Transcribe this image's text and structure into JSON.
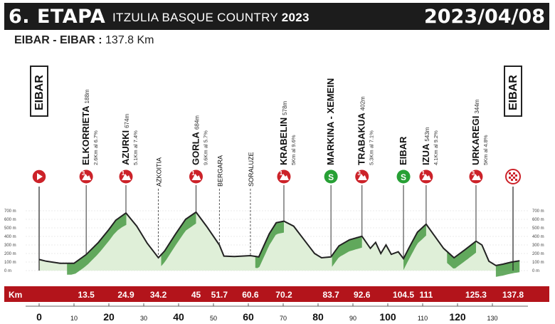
{
  "header": {
    "stage": "6. ETAPA",
    "race_name": "ITZULIA BASQUE COUNTRY",
    "race_year": "2023",
    "date": "2023/04/08"
  },
  "route": {
    "cities": "EIBAR - EIBAR :",
    "distance": "137.8 Km"
  },
  "start_label": "EIBAR",
  "finish_label": "EIBAR",
  "colors": {
    "header_bg": "#1c1c1c",
    "km_bar": "#b3141b",
    "badge_red": "#cc2229",
    "sprint_green": "#27a035",
    "profile_fill": "#dfefd8",
    "climb_green": "#4b9b47"
  },
  "km_axis_label": "Km",
  "points": [
    {
      "name": "ELKORRIETA",
      "alt": "188m",
      "detail": "2.6Km al 6.7%",
      "km": 13.5,
      "km_label": "13.5",
      "marker": "climb",
      "cat": "3"
    },
    {
      "name": "AZURKI",
      "alt": "674m",
      "detail": "5.1Km al 7.4%",
      "km": 24.9,
      "km_label": "24.9",
      "marker": "climb",
      "cat": "1"
    },
    {
      "name": "AZKOITIA",
      "alt": "",
      "detail": "",
      "km": 34.2,
      "km_label": "34.2",
      "marker": "town",
      "cat": ""
    },
    {
      "name": "GORLA",
      "alt": "684m",
      "detail": "9.6Km al 5.7%",
      "km": 45,
      "km_label": "45",
      "marker": "climb",
      "cat": "1"
    },
    {
      "name": "BERGARA",
      "alt": "",
      "detail": "",
      "km": 51.7,
      "km_label": "51.7",
      "marker": "town",
      "cat": ""
    },
    {
      "name": "SORALUZE",
      "alt": "",
      "detail": "",
      "km": 60.6,
      "km_label": "60.6",
      "marker": "town",
      "cat": ""
    },
    {
      "name": "KRABELIN",
      "alt": "578m",
      "detail": "5Km al 9.6%",
      "km": 70.2,
      "km_label": "70.2",
      "marker": "climb",
      "cat": "1"
    },
    {
      "name": "MARKINA - XEMEIN",
      "alt": "",
      "detail": "",
      "km": 83.7,
      "km_label": "83.7",
      "marker": "sprint",
      "cat": "S"
    },
    {
      "name": "TRABAKUA",
      "alt": "402m",
      "detail": "5.3Km al 7.1%",
      "km": 92.6,
      "km_label": "92.6",
      "marker": "climb",
      "cat": "3"
    },
    {
      "name": "EIBAR",
      "alt": "",
      "detail": "",
      "km": 104.5,
      "km_label": "104.5",
      "marker": "sprint",
      "cat": "S"
    },
    {
      "name": "IZUA",
      "alt": "543m",
      "detail": "4.1Km al 9.2%",
      "km": 111,
      "km_label": "111",
      "marker": "climb",
      "cat": "1"
    },
    {
      "name": "URKAREGI",
      "alt": "344m",
      "detail": "5Km al 4.8%",
      "km": 125.3,
      "km_label": "125.3",
      "marker": "climb",
      "cat": "3"
    }
  ],
  "finish_km_label": "137.8",
  "alt_ticks": [
    "700 m",
    "600 m",
    "500 m",
    "400 m",
    "300 m",
    "200 m",
    "100 m",
    "0 m"
  ],
  "x_ticks": [
    {
      "v": 0,
      "label": "0",
      "major": true
    },
    {
      "v": 10,
      "label": "10",
      "major": false
    },
    {
      "v": 20,
      "label": "20",
      "major": true
    },
    {
      "v": 30,
      "label": "30",
      "major": false
    },
    {
      "v": 40,
      "label": "40",
      "major": true
    },
    {
      "v": 50,
      "label": "50",
      "major": false
    },
    {
      "v": 60,
      "label": "60",
      "major": true
    },
    {
      "v": 70,
      "label": "70",
      "major": false
    },
    {
      "v": 80,
      "label": "80",
      "major": true
    },
    {
      "v": 90,
      "label": "90",
      "major": false
    },
    {
      "v": 100,
      "label": "100",
      "major": true
    },
    {
      "v": 110,
      "label": "110",
      "major": false
    },
    {
      "v": 120,
      "label": "120",
      "major": true
    },
    {
      "v": 130,
      "label": "130",
      "major": false
    }
  ],
  "profile": [
    [
      0,
      130
    ],
    [
      2,
      110
    ],
    [
      6,
      85
    ],
    [
      10,
      85
    ],
    [
      13.5,
      188
    ],
    [
      17,
      330
    ],
    [
      20,
      480
    ],
    [
      22,
      590
    ],
    [
      24.9,
      674
    ],
    [
      28,
      520
    ],
    [
      31,
      320
    ],
    [
      34.2,
      150
    ],
    [
      36,
      230
    ],
    [
      39,
      420
    ],
    [
      42,
      600
    ],
    [
      45,
      684
    ],
    [
      48,
      520
    ],
    [
      51.7,
      300
    ],
    [
      53,
      170
    ],
    [
      56,
      165
    ],
    [
      60.6,
      175
    ],
    [
      63,
      160
    ],
    [
      66,
      430
    ],
    [
      68,
      560
    ],
    [
      70.2,
      578
    ],
    [
      73,
      520
    ],
    [
      76,
      360
    ],
    [
      79,
      200
    ],
    [
      81,
      150
    ],
    [
      83.7,
      160
    ],
    [
      86,
      290
    ],
    [
      89,
      360
    ],
    [
      92.6,
      402
    ],
    [
      95,
      260
    ],
    [
      96.5,
      330
    ],
    [
      98,
      200
    ],
    [
      99.5,
      300
    ],
    [
      101,
      190
    ],
    [
      103,
      220
    ],
    [
      104.5,
      140
    ],
    [
      106,
      260
    ],
    [
      108.5,
      450
    ],
    [
      111,
      543
    ],
    [
      113,
      430
    ],
    [
      116,
      260
    ],
    [
      119,
      150
    ],
    [
      122,
      240
    ],
    [
      125.3,
      344
    ],
    [
      127,
      300
    ],
    [
      129,
      110
    ],
    [
      131,
      60
    ],
    [
      133,
      75
    ],
    [
      135.5,
      100
    ],
    [
      137.8,
      115
    ]
  ],
  "climbs": [
    [
      8,
      25
    ],
    [
      35,
      45
    ],
    [
      62,
      70.2
    ],
    [
      84,
      92.6
    ],
    [
      104.5,
      111
    ],
    [
      117,
      125.3
    ],
    [
      131,
      137.8
    ]
  ]
}
